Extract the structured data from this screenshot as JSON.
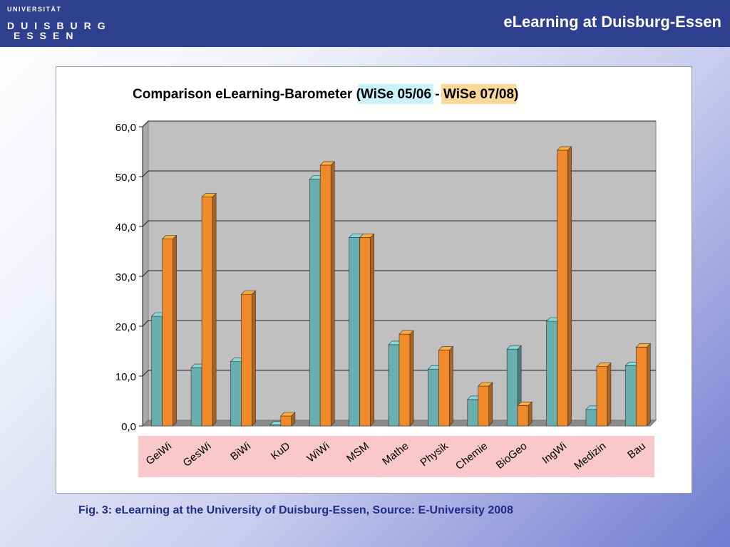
{
  "header": {
    "logo_line1": "UNIVERSITÄT",
    "logo_line2": "DUISBURG",
    "logo_line3": "ESSEN",
    "title": "eLearning at Duisburg-Essen"
  },
  "chart_data": {
    "type": "bar",
    "title_prefix": "Comparison eLearning-Barometer (",
    "title_sep": " - ",
    "title_suffix": ")",
    "categories": [
      "GeiWi",
      "GesWi",
      "BiWi",
      "KuD",
      "WiWi",
      "MSM",
      "Mathe",
      "Physik",
      "Chemie",
      "BioGeo",
      "IngWi",
      "Medizin",
      "Bau"
    ],
    "series": [
      {
        "name": "WiSe 05/06",
        "color": "#6aafb0",
        "highlight": "#c9f2fb",
        "values": [
          22.0,
          11.7,
          12.9,
          0.2,
          49.5,
          37.8,
          16.3,
          11.4,
          5.3,
          15.4,
          21.0,
          3.3,
          12.1
        ]
      },
      {
        "name": "WiSe 07/08",
        "color": "#f08a2a",
        "highlight": "#fcd99a",
        "values": [
          37.5,
          45.9,
          26.4,
          2.0,
          52.3,
          37.8,
          18.4,
          15.2,
          8.0,
          4.1,
          55.3,
          11.9,
          15.8
        ]
      }
    ],
    "ylim": [
      0,
      60
    ],
    "yticks": [
      "0,0",
      "10,0",
      "20,0",
      "30,0",
      "40,0",
      "50,0",
      "60,0"
    ],
    "grid": true,
    "label_groups": [
      [
        0,
        1,
        2,
        3
      ],
      [
        4,
        5
      ],
      [
        6,
        7,
        8,
        9
      ],
      [
        10
      ],
      [
        11
      ],
      [
        12
      ]
    ],
    "label_bg": "#f8c8cb"
  },
  "caption": "Fig. 3: eLearning at the University of Duisburg-Essen, Source: E-University 2008"
}
